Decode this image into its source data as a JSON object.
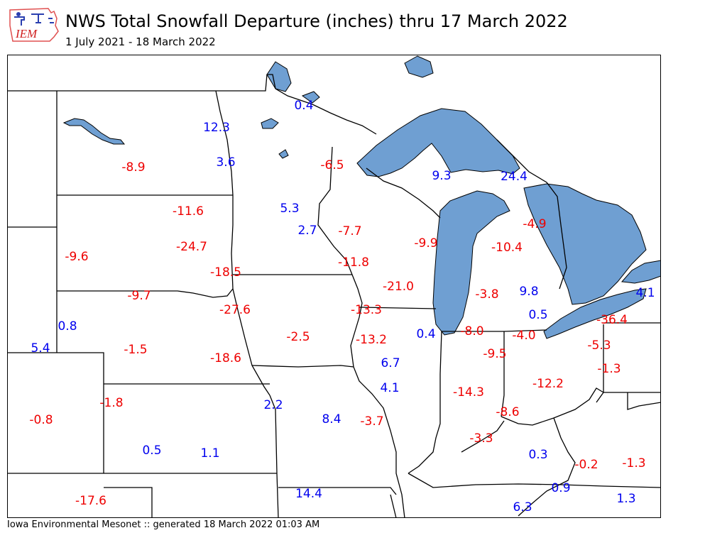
{
  "header": {
    "logo_text": "IEM",
    "title": "NWS Total Snowfall Departure (inches) thru 17 March 2022",
    "subtitle": "1 July 2021 - 18 March 2022"
  },
  "footer": {
    "text": "Iowa Environmental Mesonet :: generated 18 March 2022 01:03 AM"
  },
  "colors": {
    "positive": "#0000ee",
    "negative": "#ee0000",
    "water": "#6f9fd2",
    "border": "#000000"
  },
  "stations": [
    {
      "value": "0.4",
      "sign": "pos"
    },
    {
      "value": "12.3",
      "sign": "pos"
    },
    {
      "value": "-8.9",
      "sign": "neg"
    },
    {
      "value": "3.6",
      "sign": "pos"
    },
    {
      "value": "-6.5",
      "sign": "neg"
    },
    {
      "value": "9.3",
      "sign": "pos"
    },
    {
      "value": "24.4",
      "sign": "pos"
    },
    {
      "value": "-11.6",
      "sign": "neg"
    },
    {
      "value": "5.3",
      "sign": "pos"
    },
    {
      "value": "2.7",
      "sign": "pos"
    },
    {
      "value": "-7.7",
      "sign": "neg"
    },
    {
      "value": "-4.9",
      "sign": "neg"
    },
    {
      "value": "-24.7",
      "sign": "neg"
    },
    {
      "value": "-9.6",
      "sign": "neg"
    },
    {
      "value": "-9.9",
      "sign": "neg"
    },
    {
      "value": "-10.4",
      "sign": "neg"
    },
    {
      "value": "-18.5",
      "sign": "neg"
    },
    {
      "value": "-11.8",
      "sign": "neg"
    },
    {
      "value": "-21.0",
      "sign": "neg"
    },
    {
      "value": "-9.7",
      "sign": "neg"
    },
    {
      "value": "-3.8",
      "sign": "neg"
    },
    {
      "value": "9.8",
      "sign": "pos"
    },
    {
      "value": "4.1",
      "sign": "pos"
    },
    {
      "value": "-27.6",
      "sign": "neg"
    },
    {
      "value": "-13.3",
      "sign": "neg"
    },
    {
      "value": "0.5",
      "sign": "pos"
    },
    {
      "value": "-36.4",
      "sign": "neg"
    },
    {
      "value": "0.8",
      "sign": "pos"
    },
    {
      "value": "-2.5",
      "sign": "neg"
    },
    {
      "value": "0.4",
      "sign": "pos"
    },
    {
      "value": "-8.0",
      "sign": "neg"
    },
    {
      "value": "-4.0",
      "sign": "neg"
    },
    {
      "value": "-13.2",
      "sign": "neg"
    },
    {
      "value": "5.4",
      "sign": "pos"
    },
    {
      "value": "-1.5",
      "sign": "neg"
    },
    {
      "value": "-9.5",
      "sign": "neg"
    },
    {
      "value": "-5.3",
      "sign": "neg"
    },
    {
      "value": "-18.6",
      "sign": "neg"
    },
    {
      "value": "6.7",
      "sign": "pos"
    },
    {
      "value": "-1.3",
      "sign": "neg"
    },
    {
      "value": "-12.2",
      "sign": "neg"
    },
    {
      "value": "4.1",
      "sign": "pos"
    },
    {
      "value": "-14.3",
      "sign": "neg"
    },
    {
      "value": "-1.8",
      "sign": "neg"
    },
    {
      "value": "2.2",
      "sign": "pos"
    },
    {
      "value": "-8.6",
      "sign": "neg"
    },
    {
      "value": "-0.8",
      "sign": "neg"
    },
    {
      "value": "8.4",
      "sign": "pos"
    },
    {
      "value": "-3.7",
      "sign": "neg"
    },
    {
      "value": "-3.3",
      "sign": "neg"
    },
    {
      "value": "0.5",
      "sign": "pos"
    },
    {
      "value": "1.1",
      "sign": "pos"
    },
    {
      "value": "0.3",
      "sign": "pos"
    },
    {
      "value": "-0.2",
      "sign": "neg"
    },
    {
      "value": "-1.3",
      "sign": "neg"
    },
    {
      "value": "0.9",
      "sign": "pos"
    },
    {
      "value": "14.4",
      "sign": "pos"
    },
    {
      "value": "-17.6",
      "sign": "neg"
    },
    {
      "value": "1.3",
      "sign": "pos"
    },
    {
      "value": "6.3",
      "sign": "pos"
    }
  ]
}
